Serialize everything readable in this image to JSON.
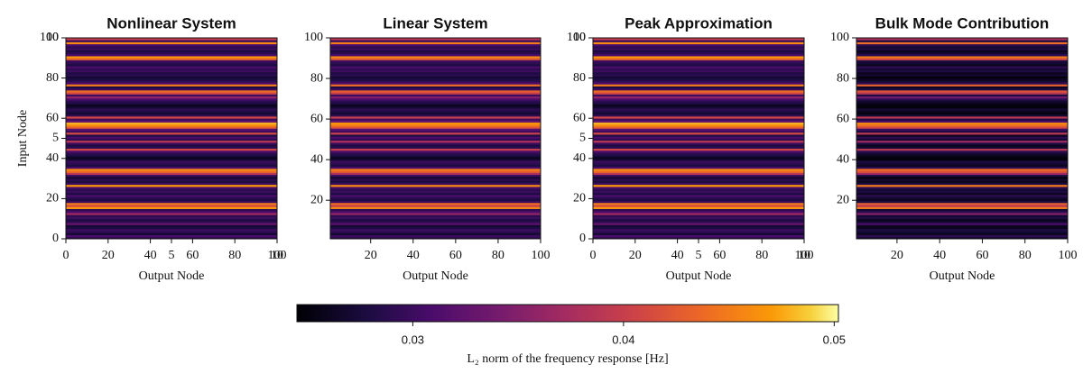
{
  "chart_data": [
    {
      "type": "heatmap",
      "title": "Nonlinear System",
      "xlabel": "Output Node",
      "ylabel": "Input Node",
      "xlim": [
        0,
        100
      ],
      "xticks": [
        0,
        20,
        40,
        60,
        80,
        100
      ],
      "ylim": [
        0,
        100
      ],
      "yticks": [
        0,
        20,
        40,
        60,
        80,
        100
      ],
      "x2lim": [
        0,
        10
      ],
      "x2ticks": [
        5,
        10
      ],
      "y2lim": [
        0,
        10
      ],
      "y2ticks": [
        5,
        10
      ],
      "values": [
        0.029,
        0.031,
        0.027,
        0.029,
        0.03,
        0.028,
        0.027,
        0.033,
        0.029,
        0.028,
        0.03,
        0.029,
        0.037,
        0.031,
        0.029,
        0.047,
        0.041,
        0.045,
        0.03,
        0.028,
        0.029,
        0.031,
        0.028,
        0.03,
        0.029,
        0.031,
        0.047,
        0.03,
        0.028,
        0.029,
        0.027,
        0.03,
        0.039,
        0.044,
        0.046,
        0.031,
        0.028,
        0.029,
        0.03,
        0.027,
        0.026,
        0.028,
        0.029,
        0.031,
        0.041,
        0.029,
        0.028,
        0.03,
        0.039,
        0.029,
        0.031,
        0.028,
        0.041,
        0.03,
        0.032,
        0.043,
        0.046,
        0.048,
        0.033,
        0.03,
        0.041,
        0.029,
        0.027,
        0.028,
        0.029,
        0.027,
        0.026,
        0.028,
        0.029,
        0.031,
        0.036,
        0.03,
        0.041,
        0.044,
        0.03,
        0.028,
        0.045,
        0.031,
        0.029,
        0.028,
        0.027,
        0.029,
        0.028,
        0.03,
        0.029,
        0.031,
        0.028,
        0.029,
        0.03,
        0.043,
        0.047,
        0.031,
        0.029,
        0.028,
        0.03,
        0.029,
        0.031,
        0.046,
        0.03,
        0.04
      ]
    },
    {
      "type": "heatmap",
      "title": "Linear System",
      "xlabel": "Output Node",
      "xlim": [
        1,
        100
      ],
      "xticks": [
        20,
        40,
        60,
        80,
        100
      ],
      "ylim": [
        1,
        100
      ],
      "yticks": [
        20,
        40,
        60,
        80,
        100
      ],
      "values": [
        0.029,
        0.03,
        0.027,
        0.029,
        0.03,
        0.028,
        0.027,
        0.032,
        0.029,
        0.028,
        0.03,
        0.029,
        0.036,
        0.031,
        0.029,
        0.046,
        0.04,
        0.044,
        0.03,
        0.028,
        0.029,
        0.031,
        0.028,
        0.03,
        0.029,
        0.031,
        0.046,
        0.03,
        0.028,
        0.029,
        0.027,
        0.03,
        0.038,
        0.043,
        0.045,
        0.031,
        0.028,
        0.029,
        0.03,
        0.027,
        0.026,
        0.028,
        0.029,
        0.031,
        0.04,
        0.029,
        0.028,
        0.03,
        0.038,
        0.029,
        0.031,
        0.028,
        0.04,
        0.03,
        0.032,
        0.042,
        0.045,
        0.047,
        0.033,
        0.03,
        0.04,
        0.029,
        0.027,
        0.028,
        0.029,
        0.027,
        0.026,
        0.028,
        0.029,
        0.031,
        0.035,
        0.03,
        0.04,
        0.043,
        0.03,
        0.028,
        0.044,
        0.031,
        0.029,
        0.028,
        0.027,
        0.029,
        0.028,
        0.03,
        0.029,
        0.031,
        0.028,
        0.029,
        0.03,
        0.042,
        0.046,
        0.031,
        0.029,
        0.028,
        0.03,
        0.029,
        0.031,
        0.045,
        0.03,
        0.039
      ]
    },
    {
      "type": "heatmap",
      "title": "Peak Approximation",
      "xlabel": "Output Node",
      "xlim": [
        0,
        100
      ],
      "xticks": [
        0,
        20,
        40,
        60,
        80,
        100
      ],
      "ylim": [
        0,
        100
      ],
      "yticks": [
        0,
        20,
        40,
        60,
        80,
        100
      ],
      "x2lim": [
        0,
        10
      ],
      "x2ticks": [
        5,
        10
      ],
      "y2lim": [
        0,
        10
      ],
      "y2ticks": [
        5,
        10
      ],
      "values": [
        0.029,
        0.031,
        0.027,
        0.029,
        0.03,
        0.028,
        0.027,
        0.033,
        0.029,
        0.028,
        0.03,
        0.029,
        0.037,
        0.031,
        0.029,
        0.047,
        0.041,
        0.045,
        0.03,
        0.028,
        0.029,
        0.031,
        0.028,
        0.03,
        0.029,
        0.031,
        0.047,
        0.03,
        0.028,
        0.029,
        0.027,
        0.03,
        0.039,
        0.044,
        0.046,
        0.031,
        0.028,
        0.029,
        0.03,
        0.027,
        0.026,
        0.028,
        0.029,
        0.031,
        0.041,
        0.029,
        0.028,
        0.03,
        0.039,
        0.029,
        0.031,
        0.028,
        0.041,
        0.03,
        0.032,
        0.043,
        0.046,
        0.048,
        0.033,
        0.03,
        0.041,
        0.029,
        0.027,
        0.028,
        0.029,
        0.027,
        0.026,
        0.028,
        0.029,
        0.031,
        0.036,
        0.03,
        0.041,
        0.044,
        0.03,
        0.028,
        0.045,
        0.031,
        0.029,
        0.028,
        0.027,
        0.029,
        0.028,
        0.03,
        0.029,
        0.031,
        0.028,
        0.029,
        0.03,
        0.043,
        0.047,
        0.031,
        0.029,
        0.028,
        0.03,
        0.029,
        0.031,
        0.046,
        0.03,
        0.04
      ]
    },
    {
      "type": "heatmap",
      "title": "Bulk Mode Contribution",
      "xlabel": "Output Node",
      "xlim": [
        1,
        100
      ],
      "xticks": [
        20,
        40,
        60,
        80,
        100
      ],
      "ylim": [
        1,
        100
      ],
      "yticks": [
        20,
        40,
        60,
        80,
        100
      ],
      "values": [
        0.027,
        0.029,
        0.026,
        0.027,
        0.028,
        0.026,
        0.026,
        0.031,
        0.027,
        0.026,
        0.028,
        0.027,
        0.035,
        0.029,
        0.027,
        0.045,
        0.039,
        0.043,
        0.028,
        0.026,
        0.027,
        0.029,
        0.026,
        0.028,
        0.027,
        0.029,
        0.045,
        0.028,
        0.026,
        0.027,
        0.025,
        0.028,
        0.037,
        0.042,
        0.044,
        0.029,
        0.026,
        0.027,
        0.028,
        0.025,
        0.025,
        0.026,
        0.027,
        0.029,
        0.039,
        0.027,
        0.026,
        0.028,
        0.037,
        0.027,
        0.029,
        0.026,
        0.039,
        0.028,
        0.03,
        0.041,
        0.044,
        0.046,
        0.031,
        0.028,
        0.039,
        0.027,
        0.025,
        0.026,
        0.027,
        0.025,
        0.025,
        0.026,
        0.027,
        0.029,
        0.034,
        0.028,
        0.039,
        0.042,
        0.028,
        0.026,
        0.043,
        0.029,
        0.027,
        0.026,
        0.025,
        0.027,
        0.026,
        0.028,
        0.027,
        0.029,
        0.026,
        0.027,
        0.028,
        0.041,
        0.045,
        0.029,
        0.027,
        0.026,
        0.028,
        0.027,
        0.029,
        0.044,
        0.028,
        0.038
      ]
    }
  ],
  "colorbar": {
    "label": "L₂ norm of the frequency response [Hz]",
    "cmap": "inferno",
    "clim": [
      0.0245,
      0.0502
    ],
    "ticks": [
      0.03,
      0.04,
      0.05
    ]
  }
}
